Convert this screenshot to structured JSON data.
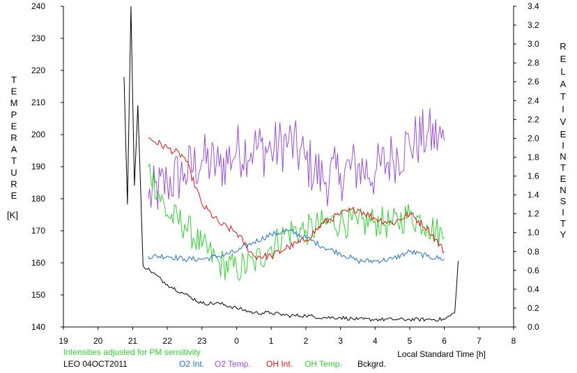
{
  "chart_data": {
    "type": "line",
    "left_axis": {
      "label_letters": [
        "T",
        "E",
        "M",
        "P",
        "E",
        "R",
        "A",
        "T",
        "U",
        "R",
        "E"
      ],
      "unit": "[K]",
      "ylim": [
        140,
        240
      ],
      "ticks": [
        "140",
        "150",
        "160",
        "170",
        "180",
        "190",
        "200",
        "210",
        "220",
        "230",
        "240"
      ]
    },
    "right_axis": {
      "label_letters_1": [
        "R",
        "E",
        "L",
        "A",
        "T",
        "I",
        "V",
        "E"
      ],
      "label_letters_2": [
        "I",
        "N",
        "T",
        "E",
        "N",
        "S",
        "I",
        "T",
        "Y"
      ],
      "ylim": [
        0.0,
        3.4
      ],
      "ticks": [
        "0.0",
        "0.2",
        "0.4",
        "0.6",
        "0.8",
        "1.0",
        "1.2",
        "1.4",
        "1.6",
        "1.8",
        "2.0",
        "2.2",
        "2.4",
        "2.6",
        "2.8",
        "3.0",
        "3.2",
        "3.4"
      ]
    },
    "x_axis": {
      "label": "Local Standard Time [h]",
      "range_hours_since_19": [
        0,
        13
      ],
      "ticks": [
        "19",
        "20",
        "21",
        "22",
        "23",
        "0",
        "1",
        "2",
        "3",
        "4",
        "5",
        "6",
        "7",
        "8"
      ]
    },
    "note": "Intensities adjusted for PM sensitivity",
    "station_date": "LEO 04OCT2011",
    "grid": false,
    "series": [
      {
        "name": "O2 Int.",
        "color": "#1f6fd0",
        "axis": "right",
        "x": [
          2.45,
          3.0,
          3.5,
          4.0,
          4.5,
          5.0,
          5.5,
          6.0,
          6.5,
          7.0,
          7.5,
          8.0,
          8.5,
          9.0,
          9.5,
          10.0,
          10.5,
          11.0
        ],
        "y": [
          0.75,
          0.75,
          0.72,
          0.72,
          0.75,
          0.8,
          0.9,
          0.98,
          1.02,
          0.95,
          0.85,
          0.78,
          0.7,
          0.7,
          0.72,
          0.8,
          0.75,
          0.72
        ]
      },
      {
        "name": "O2 Temp.",
        "color": "#9a4fd6",
        "axis": "left",
        "x": [
          2.45,
          3.0,
          3.5,
          4.0,
          4.5,
          5.0,
          5.5,
          6.0,
          6.5,
          7.0,
          7.5,
          8.0,
          8.5,
          9.0,
          9.5,
          10.0,
          10.5,
          11.0
        ],
        "y": [
          180,
          185,
          188,
          192,
          190,
          195,
          196,
          195,
          198,
          192,
          186,
          188,
          190,
          188,
          193,
          197,
          200,
          198
        ]
      },
      {
        "name": "OH Int.",
        "color": "#e01010",
        "axis": "right",
        "x": [
          2.45,
          3.0,
          3.5,
          4.0,
          4.5,
          5.0,
          5.5,
          6.0,
          6.5,
          7.0,
          7.5,
          8.0,
          8.5,
          9.0,
          9.5,
          10.0,
          10.5,
          11.0
        ],
        "y": [
          2.0,
          1.9,
          1.8,
          1.3,
          1.1,
          1.0,
          0.75,
          0.75,
          0.85,
          0.92,
          1.1,
          1.2,
          1.25,
          1.15,
          1.1,
          1.2,
          1.05,
          0.8
        ]
      },
      {
        "name": "OH Temp.",
        "color": "#2fd02f",
        "axis": "left",
        "x": [
          2.45,
          3.0,
          3.5,
          4.0,
          4.5,
          5.0,
          5.5,
          6.0,
          6.5,
          7.0,
          7.5,
          8.0,
          8.5,
          9.0,
          9.5,
          10.0,
          10.5,
          11.0
        ],
        "y": [
          190,
          175,
          172,
          165,
          160,
          158,
          160,
          165,
          170,
          170,
          172,
          173,
          172,
          173,
          172,
          175,
          172,
          168
        ]
      },
      {
        "name": "Bckgrd.",
        "color": "#000000",
        "axis": "right",
        "x": [
          1.75,
          1.85,
          1.95,
          2.05,
          2.15,
          2.3,
          2.5,
          3.0,
          3.5,
          4.0,
          4.5,
          5.0,
          5.5,
          6.0,
          6.5,
          7.0,
          7.5,
          8.0,
          8.5,
          9.0,
          9.5,
          10.0,
          10.5,
          11.0,
          11.3,
          11.4
        ],
        "y": [
          2.65,
          1.3,
          3.4,
          1.5,
          2.35,
          0.65,
          0.6,
          0.45,
          0.35,
          0.25,
          0.25,
          0.2,
          0.15,
          0.15,
          0.12,
          0.12,
          0.1,
          0.1,
          0.08,
          0.08,
          0.08,
          0.08,
          0.08,
          0.08,
          0.15,
          0.7
        ]
      }
    ]
  }
}
